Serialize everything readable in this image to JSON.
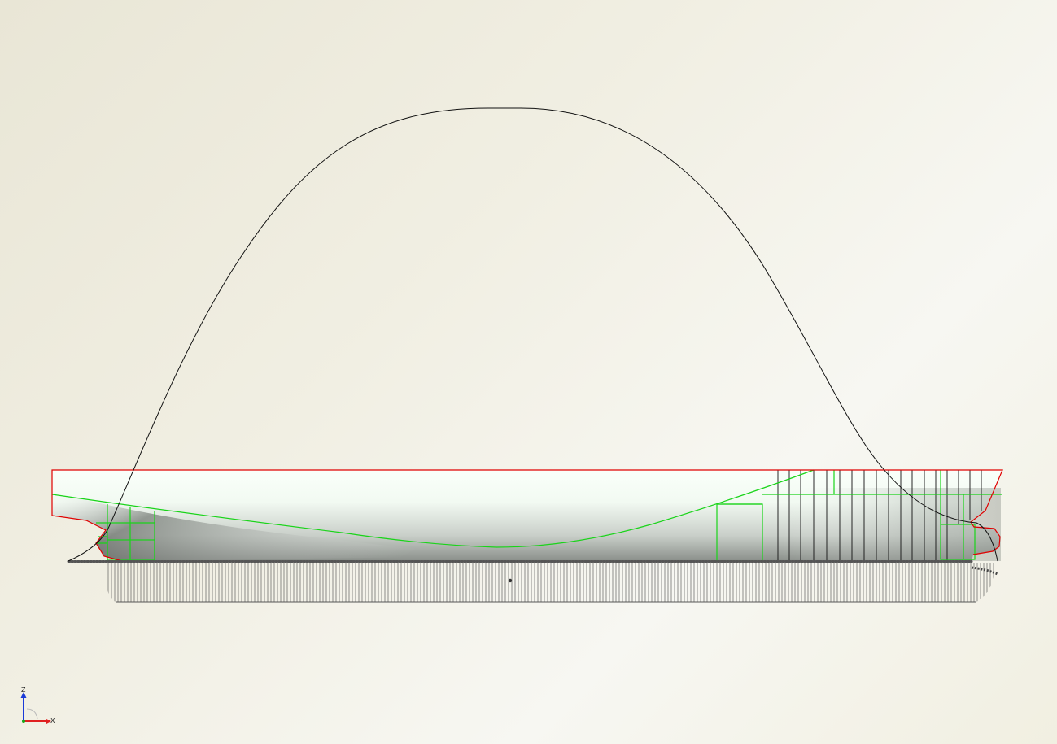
{
  "viewport": {
    "background_light": "#f7f7f2",
    "background_dark": "#e9e6d6"
  },
  "hull": {
    "outline_color": "#e00000",
    "section_color": "#00d000",
    "station_color": "#000000"
  },
  "curve": {
    "color": "#111111"
  },
  "triad": {
    "z_label": "Z",
    "x_label": "X",
    "z_color": "#1a3ad8",
    "x_color": "#e02020",
    "y_color": "#1aa81a"
  }
}
